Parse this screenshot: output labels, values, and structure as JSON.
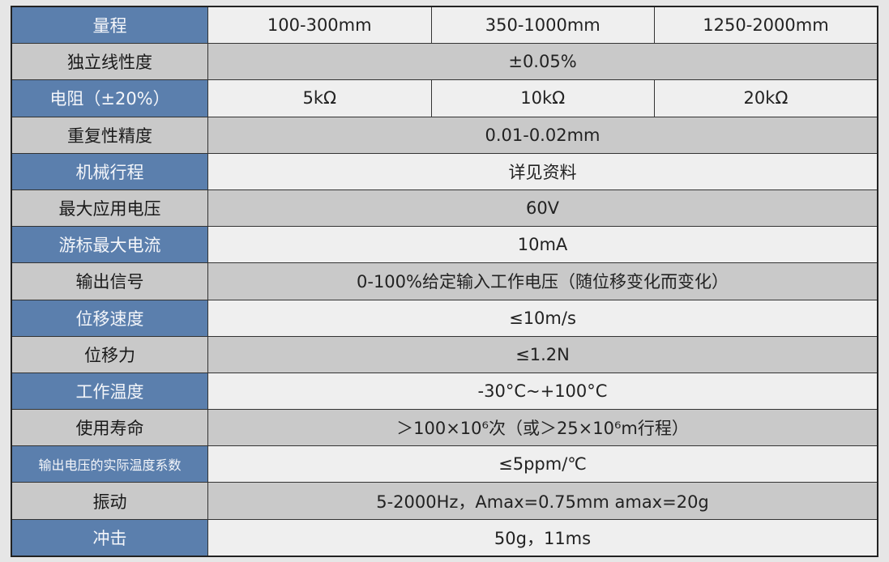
{
  "rows": [
    {
      "label": "量程",
      "values": [
        "100-300mm",
        "350-1000mm",
        "1250-2000mm"
      ]
    },
    {
      "label": "独立线性度",
      "values": [
        "±0.05%"
      ]
    },
    {
      "label": "电阻（±20%）",
      "values": [
        "5kΩ",
        "10kΩ",
        "20kΩ"
      ]
    },
    {
      "label": "重复性精度",
      "values": [
        "0.01-0.02mm"
      ]
    },
    {
      "label": "机械行程",
      "values": [
        "详见资料"
      ]
    },
    {
      "label": "最大应用电压",
      "values": [
        "60V"
      ]
    },
    {
      "label": "游标最大电流",
      "values": [
        "10mA"
      ]
    },
    {
      "label": "输出信号",
      "values": [
        "0-100%给定输入工作电压（随位移变化而变化）"
      ]
    },
    {
      "label": "位移速度",
      "values": [
        "≤10m/s"
      ]
    },
    {
      "label": "位移力",
      "values": [
        "≤1.2N"
      ]
    },
    {
      "label": "工作温度",
      "values": [
        "-30°C~+100°C"
      ]
    },
    {
      "label": "使用寿命",
      "values": [
        "＞100×10⁶次（或＞25×10⁶m行程）"
      ]
    },
    {
      "label": "输出电压的实际温度系数",
      "values": [
        "≤5ppm/℃"
      ]
    },
    {
      "label": "振动",
      "values": [
        "5-2000Hz，Amax=0.75mm  amax=20g"
      ]
    },
    {
      "label": "冲击",
      "values": [
        "50g，11ms"
      ]
    }
  ],
  "colors": {
    "label_blue": "#5b7fad",
    "label_grey": "#c9c9c9",
    "row_light": "#efefef",
    "row_grey": "#c9c9c9"
  }
}
